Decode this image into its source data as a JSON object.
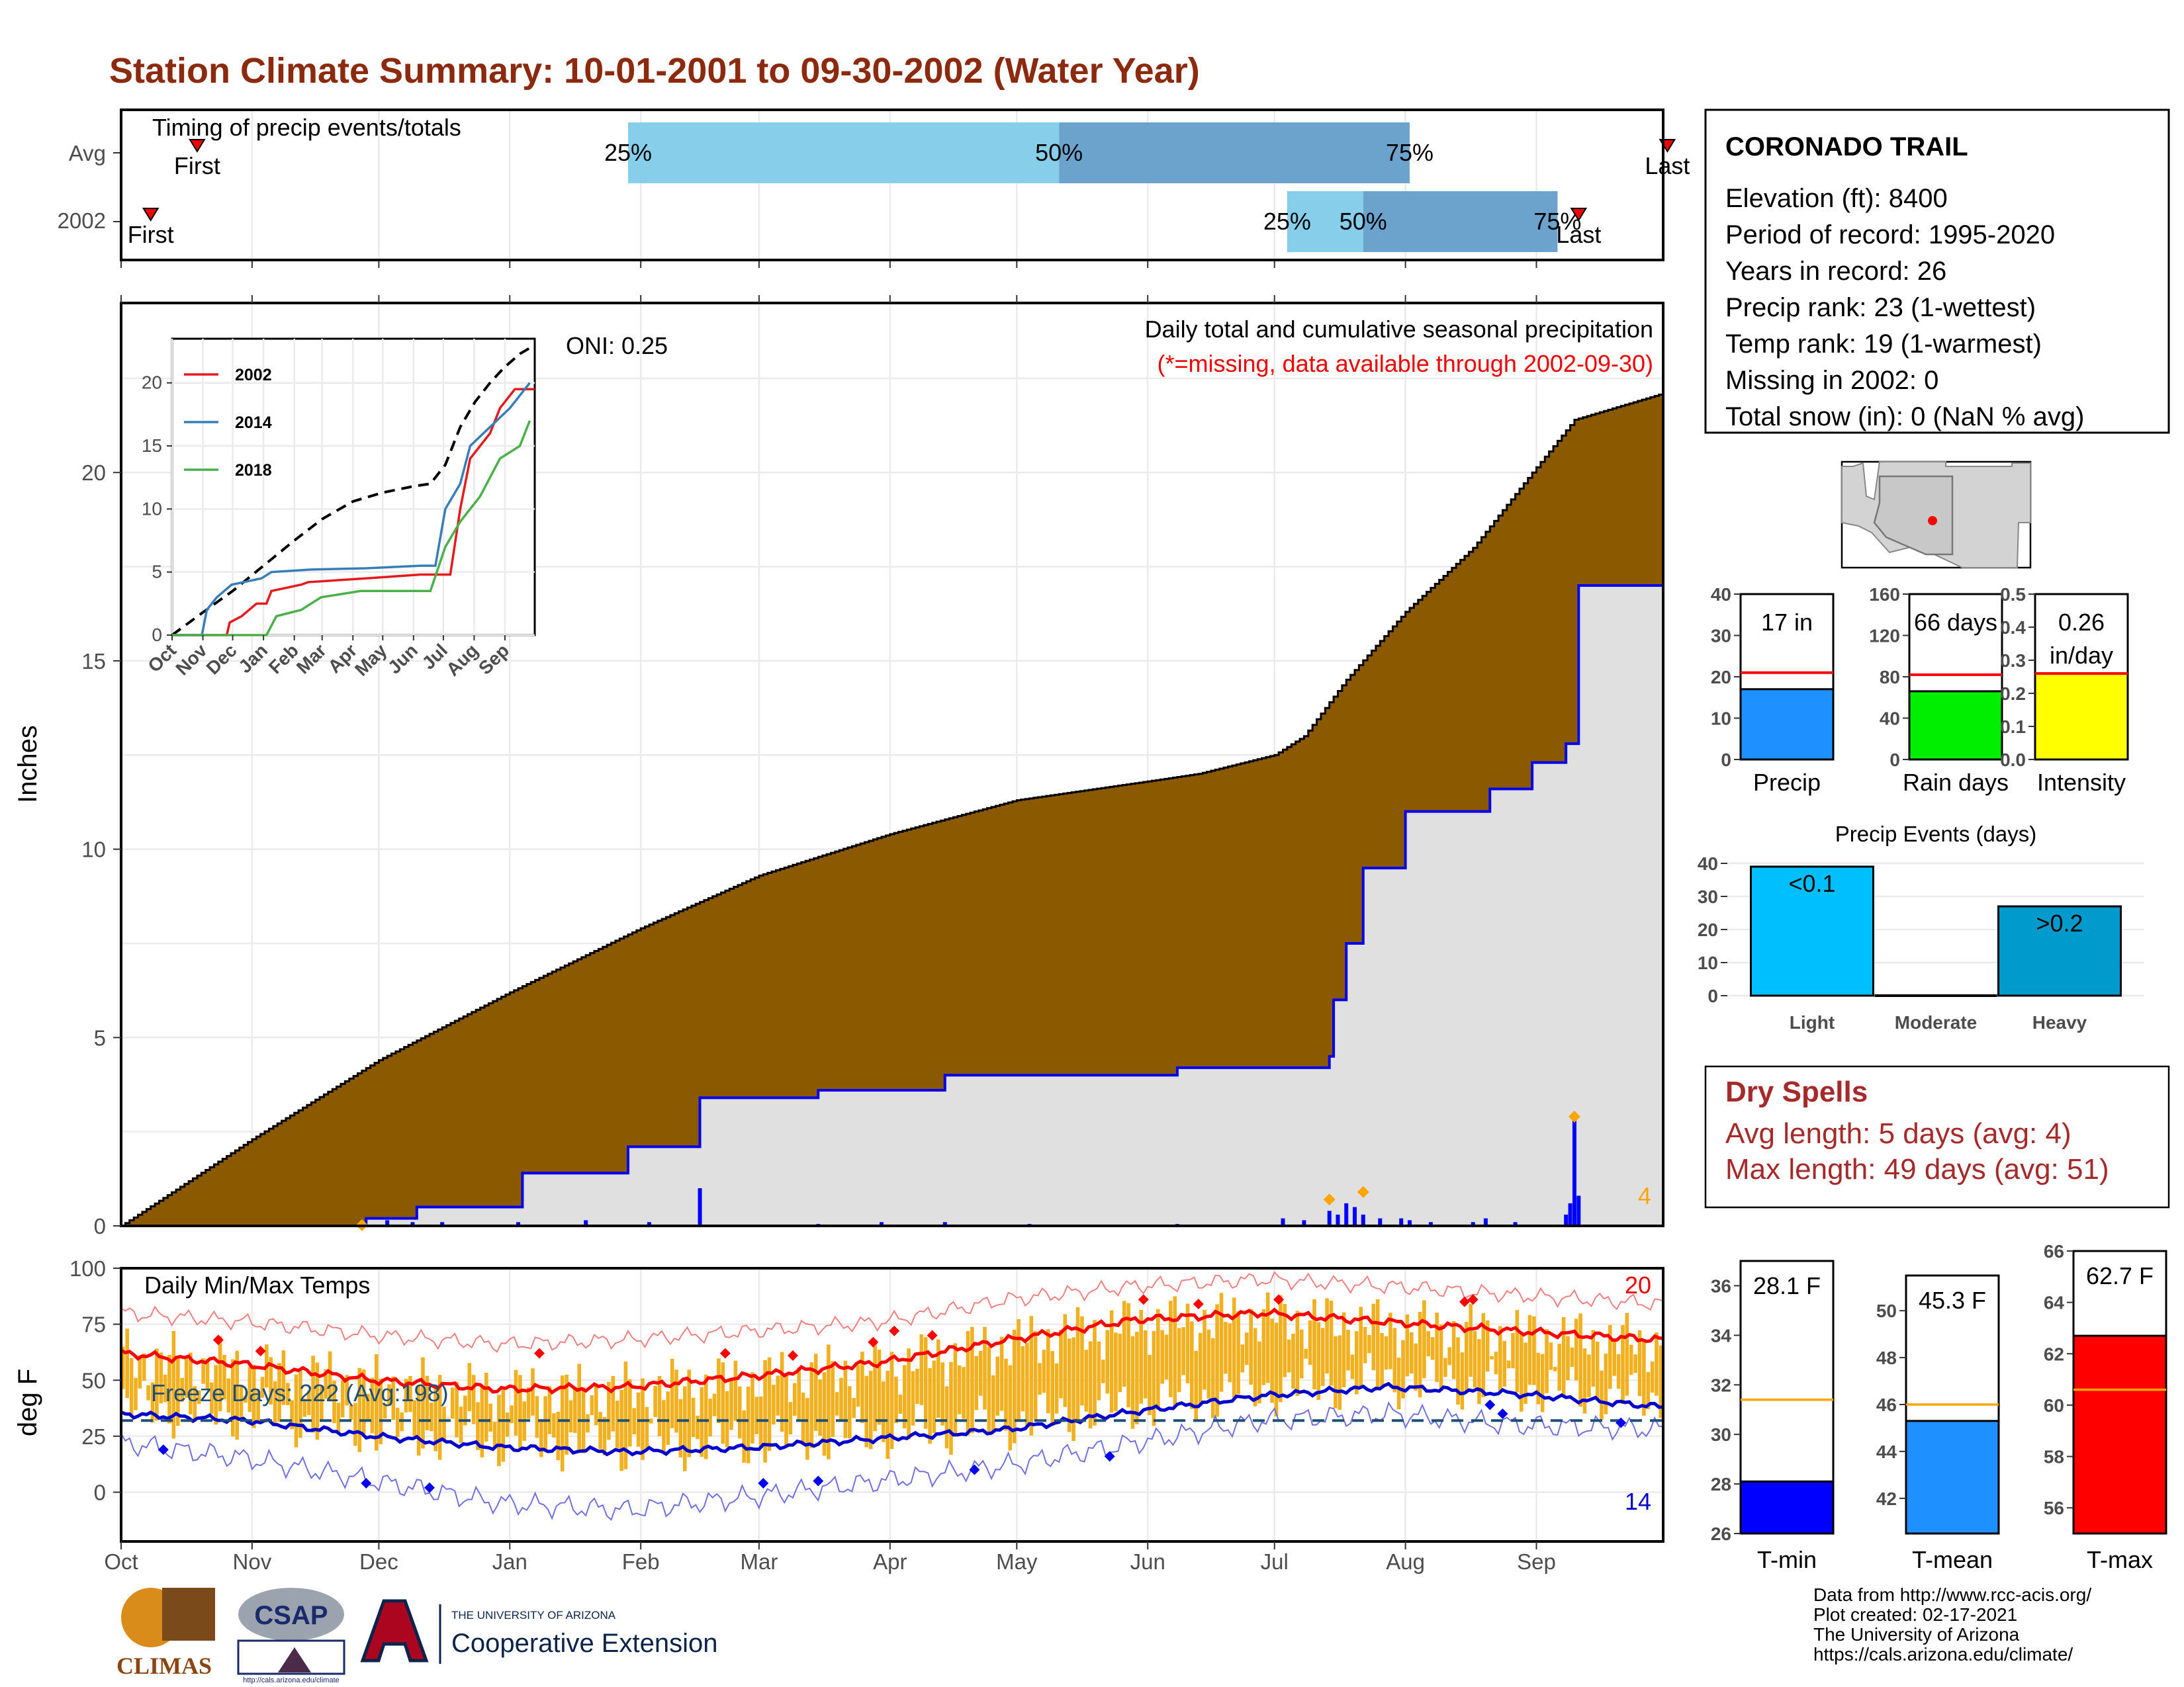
{
  "title": "Station Climate Summary: 10-01-2001 to 09-30-2002 (Water Year)",
  "colors": {
    "title": "#8B2A0E",
    "cum_fill": "#8B5A00",
    "normal_fill": "#E0E0E0",
    "normal_line": "#0000EE",
    "tmax": "#FF0000",
    "tmin": "#0000CC",
    "bars": "#F0B020",
    "q1": "#87CEEB",
    "q2": "#6BA3CC"
  },
  "months": [
    "Oct",
    "Nov",
    "Dec",
    "Jan",
    "Feb",
    "Mar",
    "Apr",
    "May",
    "Jun",
    "Jul",
    "Aug",
    "Sep"
  ],
  "timing": {
    "label": "Timing of precip events/totals",
    "rows": [
      {
        "name": "Avg",
        "first_label": "First",
        "last_label": "Last",
        "first": 18,
        "last": 366,
        "q25": 120,
        "q50": 222,
        "q75": 305,
        "l25": "25%",
        "l50": "50%",
        "l75": "75%"
      },
      {
        "name": "2002",
        "first_label": "First",
        "last_label": "Last",
        "first": 7,
        "last": 345,
        "q25": 276,
        "q50": 294,
        "q75": 340,
        "l25": "25%",
        "l50": "50%",
        "l75": "75%"
      }
    ]
  },
  "main": {
    "ylabel": "Inches",
    "yticks": [
      "0",
      "5",
      "10",
      "15",
      "20"
    ],
    "header1": "Daily total and cumulative seasonal precipitation",
    "header2": "(*=missing, data available through 2002-09-30)",
    "oni": "ONI: 0.25",
    "extreme_count": "4",
    "cumulative_normal": [
      [
        0,
        0
      ],
      [
        31,
        2.3
      ],
      [
        61,
        4.4
      ],
      [
        92,
        6.2
      ],
      [
        123,
        7.9
      ],
      [
        151,
        9.3
      ],
      [
        182,
        10.4
      ],
      [
        212,
        11.3
      ],
      [
        243,
        11.8
      ],
      [
        255,
        12.0
      ],
      [
        273,
        12.5
      ],
      [
        280,
        13.0
      ],
      [
        290,
        14.5
      ],
      [
        304,
        16.3
      ],
      [
        320,
        18.0
      ],
      [
        334,
        20.0
      ],
      [
        344,
        21.4
      ],
      [
        365,
        22.1
      ]
    ],
    "cumulative_2002": [
      [
        0,
        0
      ],
      [
        55,
        0
      ],
      [
        58,
        0.2
      ],
      [
        70,
        0.5
      ],
      [
        95,
        1.4
      ],
      [
        120,
        2.1
      ],
      [
        137,
        2.2
      ],
      [
        137,
        3.4
      ],
      [
        165,
        3.6
      ],
      [
        195,
        4.0
      ],
      [
        250,
        4.2
      ],
      [
        280,
        4.2
      ],
      [
        286,
        4.5
      ],
      [
        287,
        6.0
      ],
      [
        290,
        7.5
      ],
      [
        294,
        9.5
      ],
      [
        304,
        11.0
      ],
      [
        324,
        11.6
      ],
      [
        334,
        12.3
      ],
      [
        342,
        12.8
      ],
      [
        345,
        17.0
      ],
      [
        365,
        17.0
      ]
    ],
    "daily_bars": [
      [
        57,
        0.1
      ],
      [
        63,
        0.15
      ],
      [
        69,
        0.1
      ],
      [
        76,
        0.1
      ],
      [
        94,
        0.1
      ],
      [
        110,
        0.15
      ],
      [
        125,
        0.1
      ],
      [
        137,
        1.0
      ],
      [
        165,
        0.05
      ],
      [
        180,
        0.1
      ],
      [
        195,
        0.1
      ],
      [
        215,
        0.05
      ],
      [
        250,
        0.05
      ],
      [
        275,
        0.2
      ],
      [
        280,
        0.15
      ],
      [
        286,
        0.4
      ],
      [
        288,
        0.3
      ],
      [
        290,
        0.6
      ],
      [
        292,
        0.5
      ],
      [
        294,
        0.3
      ],
      [
        298,
        0.2
      ],
      [
        303,
        0.2
      ],
      [
        305,
        0.15
      ],
      [
        310,
        0.1
      ],
      [
        320,
        0.1
      ],
      [
        323,
        0.2
      ],
      [
        330,
        0.1
      ],
      [
        342,
        0.3
      ],
      [
        343,
        0.6
      ],
      [
        344,
        2.8
      ],
      [
        345,
        0.8
      ]
    ],
    "extreme_markers": [
      [
        57,
        0.02
      ],
      [
        286,
        0.7
      ],
      [
        294,
        0.9
      ],
      [
        344,
        2.9
      ]
    ]
  },
  "inset": {
    "yticks": [
      "0",
      "5",
      "10",
      "15",
      "20"
    ],
    "months": [
      "Oct",
      "Nov",
      "Dec",
      "Jan",
      "Feb",
      "Mar",
      "Apr",
      "May",
      "Jun",
      "Jul",
      "Aug",
      "Sep"
    ],
    "series": [
      {
        "name": "2002",
        "color": "#E41A1C",
        "points": [
          [
            0,
            0
          ],
          [
            55,
            0
          ],
          [
            58,
            1
          ],
          [
            70,
            1.5
          ],
          [
            85,
            2.5
          ],
          [
            95,
            2.5
          ],
          [
            100,
            3.5
          ],
          [
            130,
            4
          ],
          [
            137,
            4.2
          ],
          [
            195,
            4.5
          ],
          [
            250,
            4.8
          ],
          [
            280,
            4.8
          ],
          [
            290,
            10
          ],
          [
            300,
            14
          ],
          [
            320,
            16
          ],
          [
            330,
            18
          ],
          [
            345,
            19.5
          ],
          [
            365,
            19.5
          ]
        ]
      },
      {
        "name": "2014",
        "color": "#377EB8",
        "points": [
          [
            0,
            0
          ],
          [
            30,
            0
          ],
          [
            35,
            2
          ],
          [
            45,
            3
          ],
          [
            60,
            4
          ],
          [
            90,
            4.5
          ],
          [
            100,
            5
          ],
          [
            140,
            5.2
          ],
          [
            195,
            5.3
          ],
          [
            250,
            5.5
          ],
          [
            265,
            5.5
          ],
          [
            275,
            10
          ],
          [
            290,
            12
          ],
          [
            300,
            15
          ],
          [
            320,
            16.5
          ],
          [
            340,
            18
          ],
          [
            360,
            20
          ]
        ]
      },
      {
        "name": "2018",
        "color": "#4DAF4A",
        "points": [
          [
            0,
            0
          ],
          [
            95,
            0
          ],
          [
            105,
            1.5
          ],
          [
            130,
            2
          ],
          [
            150,
            3
          ],
          [
            190,
            3.5
          ],
          [
            260,
            3.5
          ],
          [
            275,
            7
          ],
          [
            290,
            9
          ],
          [
            310,
            11
          ],
          [
            330,
            14
          ],
          [
            350,
            15
          ],
          [
            360,
            17
          ]
        ]
      }
    ],
    "average_points": [
      [
        0,
        0
      ],
      [
        31,
        1.8
      ],
      [
        61,
        3.5
      ],
      [
        92,
        5.5
      ],
      [
        123,
        7.5
      ],
      [
        151,
        9.2
      ],
      [
        182,
        10.6
      ],
      [
        212,
        11.3
      ],
      [
        243,
        11.8
      ],
      [
        260,
        12.0
      ],
      [
        275,
        13.5
      ],
      [
        290,
        16.5
      ],
      [
        305,
        18.5
      ],
      [
        320,
        20.0
      ],
      [
        334,
        21.2
      ],
      [
        350,
        22.3
      ],
      [
        365,
        23.0
      ]
    ]
  },
  "info": {
    "station": "CORONADO TRAIL",
    "lines": [
      "Elevation (ft): 8400",
      "Period of record: 1995-2020",
      "Years in record: 26",
      "Precip rank: 23 (1-wettest)",
      "Temp rank: 19 (1-warmest)",
      "Missing in 2002: 0",
      "Total snow (in): 0 (NaN % avg)"
    ]
  },
  "mini_bars": [
    {
      "label": "Precip",
      "value_text": "17 in",
      "value": 17,
      "avg": 21,
      "ymax": 40,
      "ticks": [
        "0",
        "10",
        "20",
        "30",
        "40"
      ],
      "color": "#1E90FF"
    },
    {
      "label": "Rain days",
      "value_text": "66 days",
      "value": 66,
      "avg": 82,
      "ymax": 160,
      "ticks": [
        "0",
        "40",
        "80",
        "120",
        "160"
      ],
      "color": "#00EE00"
    },
    {
      "label": "Intensity",
      "value_text": "0.26 in/day",
      "value_lines": [
        "0.26",
        "in/day"
      ],
      "value": 0.26,
      "avg": 0.26,
      "ymax": 0.5,
      "ticks": [
        "0.0",
        "0.1",
        "0.2",
        "0.3",
        "0.4",
        "0.5"
      ],
      "color": "#FFFF00"
    }
  ],
  "events": {
    "title": "Precip Events (days)",
    "ticks": [
      "0",
      "10",
      "20",
      "30",
      "40"
    ],
    "bars": [
      {
        "label": "Light",
        "value": 39,
        "text": "<0.1",
        "color": "#00BFFF"
      },
      {
        "label": "Moderate",
        "value": 0,
        "text": "",
        "color": "#009ACD"
      },
      {
        "label": "Heavy",
        "value": 27,
        "text": ">0.2",
        "color": "#009ACD"
      }
    ]
  },
  "dry": {
    "title": "Dry Spells",
    "avg": "Avg length: 5 days (avg: 4)",
    "max": "Max length: 49 days (avg: 51)"
  },
  "temp": {
    "title": "Daily Min/Max Temps",
    "ylabel": "deg F",
    "yticks": [
      "0",
      "25",
      "50",
      "75",
      "100"
    ],
    "freeze": "Freeze Days: 222 (Avg:198)",
    "hot_count": "20",
    "cold_count": "14",
    "tmax_normal": [
      [
        0,
        62
      ],
      [
        30,
        57
      ],
      [
        60,
        50
      ],
      [
        90,
        46
      ],
      [
        120,
        47
      ],
      [
        150,
        52
      ],
      [
        180,
        58
      ],
      [
        210,
        68
      ],
      [
        240,
        77
      ],
      [
        270,
        80
      ],
      [
        300,
        76
      ],
      [
        330,
        72
      ],
      [
        365,
        68
      ]
    ],
    "tmin_normal": [
      [
        0,
        35
      ],
      [
        30,
        32
      ],
      [
        60,
        25
      ],
      [
        90,
        20
      ],
      [
        120,
        18
      ],
      [
        150,
        20
      ],
      [
        180,
        24
      ],
      [
        210,
        28
      ],
      [
        240,
        36
      ],
      [
        270,
        43
      ],
      [
        300,
        47
      ],
      [
        330,
        44
      ],
      [
        365,
        38
      ]
    ],
    "tmax_record": [
      [
        0,
        80
      ],
      [
        30,
        76
      ],
      [
        60,
        70
      ],
      [
        90,
        66
      ],
      [
        120,
        68
      ],
      [
        150,
        72
      ],
      [
        180,
        76
      ],
      [
        210,
        86
      ],
      [
        240,
        92
      ],
      [
        270,
        95
      ],
      [
        300,
        92
      ],
      [
        330,
        88
      ],
      [
        365,
        84
      ]
    ],
    "tmin_record": [
      [
        0,
        22
      ],
      [
        30,
        15
      ],
      [
        60,
        5
      ],
      [
        90,
        -5
      ],
      [
        120,
        -8
      ],
      [
        150,
        -2
      ],
      [
        180,
        5
      ],
      [
        210,
        12
      ],
      [
        240,
        22
      ],
      [
        270,
        32
      ],
      [
        300,
        35
      ],
      [
        330,
        30
      ],
      [
        365,
        28
      ]
    ],
    "hot_markers": [
      [
        23,
        68
      ],
      [
        33,
        63
      ],
      [
        99,
        62
      ],
      [
        143,
        62
      ],
      [
        159,
        61
      ],
      [
        178,
        67
      ],
      [
        183,
        72
      ],
      [
        192,
        70
      ],
      [
        242,
        86
      ],
      [
        255,
        84
      ],
      [
        274,
        86
      ],
      [
        318,
        85
      ],
      [
        320,
        86
      ]
    ],
    "cold_markers": [
      [
        10,
        19
      ],
      [
        58,
        4
      ],
      [
        73,
        2
      ],
      [
        152,
        4
      ],
      [
        165,
        5
      ],
      [
        202,
        10
      ],
      [
        234,
        16
      ],
      [
        324,
        39
      ],
      [
        327,
        35
      ],
      [
        355,
        31
      ]
    ]
  },
  "temp_bars": [
    {
      "label": "T-min",
      "value_text": "28.1 F",
      "value": 28.1,
      "avg": 31.4,
      "ymin": 26,
      "ymax": 37,
      "ticks": [
        "26",
        "28",
        "30",
        "32",
        "34",
        "36"
      ],
      "color": "#0000FF"
    },
    {
      "label": "T-mean",
      "value_text": "45.3 F",
      "value": 45.3,
      "avg": 46.0,
      "ymin": 40.5,
      "ymax": 51.5,
      "ticks": [
        "42",
        "44",
        "46",
        "48",
        "50"
      ],
      "color": "#1E90FF"
    },
    {
      "label": "T-max",
      "value_text": "62.7 F",
      "value": 62.7,
      "avg": 60.6,
      "ymin": 55,
      "ymax": 66,
      "ticks": [
        "56",
        "58",
        "60",
        "62",
        "64",
        "66"
      ],
      "color": "#FF0000"
    }
  ],
  "footer": [
    "Data from http://www.rcc-acis.org/",
    "Plot created: 02-17-2021",
    "The University of Arizona",
    "https://cals.arizona.edu/climate/"
  ],
  "logos": {
    "climas": "CLIMAS",
    "csap": "CSAP",
    "csap_url": "http://cals.arizona.edu/climate",
    "ua_small": "THE UNIVERSITY OF ARIZONA",
    "ua_big": "Cooperative Extension"
  },
  "chart_data": [
    {
      "type": "area",
      "title": "Daily total and cumulative seasonal precipitation",
      "ylabel": "Inches",
      "ylim": [
        0,
        24.5
      ],
      "x": "day of water year",
      "series": [
        {
          "name": "cumulative normal"
        },
        {
          "name": "2002"
        }
      ]
    },
    {
      "type": "line",
      "title": "Daily Min/Max Temps",
      "ylabel": "deg F",
      "ylim": [
        -22,
        100
      ]
    },
    {
      "type": "bar",
      "title": "Precip Events (days)",
      "categories": [
        "Light",
        "Moderate",
        "Heavy"
      ],
      "values": [
        39,
        0,
        27
      ]
    }
  ]
}
